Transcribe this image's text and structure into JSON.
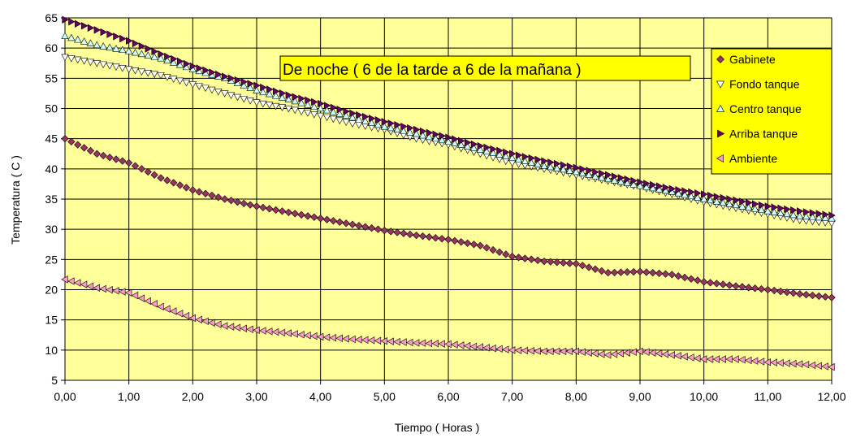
{
  "chart_data": {
    "type": "scatter",
    "annotation": "De noche ( 6 de la tarde a 6 de la mañana )",
    "xlabel": "Tiempo ( Horas )",
    "ylabel": "Temperatura ( C )",
    "xlim": [
      0,
      12
    ],
    "ylim": [
      5,
      65
    ],
    "xticks": [
      "0,00",
      "1,00",
      "2,00",
      "3,00",
      "4,00",
      "5,00",
      "6,00",
      "7,00",
      "8,00",
      "9,00",
      "10,00",
      "11,00",
      "12,00"
    ],
    "yticks": [
      5,
      10,
      15,
      20,
      25,
      30,
      35,
      40,
      45,
      50,
      55,
      60,
      65
    ],
    "grid": true,
    "legend_position": "right",
    "colors": {
      "plot_background": "#ffff99",
      "legend_background": "#ffff00",
      "annotation_background": "#ffff00",
      "gridline": "#000000"
    },
    "series": [
      {
        "name": "Gabinete",
        "marker": "diamond",
        "color": "#993366",
        "x": [
          0,
          0.5,
          1,
          1.5,
          2,
          2.5,
          3,
          3.5,
          4,
          4.5,
          5,
          5.5,
          6,
          6.5,
          7,
          7.5,
          8,
          8.5,
          9,
          9.5,
          10,
          10.5,
          11,
          11.5,
          12
        ],
        "y": [
          45,
          42.5,
          41,
          38.5,
          36.5,
          35,
          33.8,
          32.8,
          31.8,
          30.8,
          29.8,
          29,
          28.3,
          27.3,
          25.5,
          24.7,
          24.3,
          22.8,
          23,
          22.5,
          21.3,
          20.6,
          20,
          19.3,
          18.7
        ]
      },
      {
        "name": "Fondo tanque",
        "marker": "triangle-down",
        "color": "#ffffff",
        "x": [
          0,
          0.5,
          1,
          1.5,
          2,
          2.5,
          3,
          3.5,
          4,
          4.5,
          5,
          5.5,
          6,
          6.5,
          7,
          7.5,
          8,
          8.5,
          9,
          9.5,
          10,
          10.5,
          11,
          11.5,
          12
        ],
        "y": [
          58.5,
          57.5,
          56.5,
          55.5,
          54,
          52.5,
          51,
          50,
          48.8,
          47.5,
          46.5,
          45,
          44,
          42.5,
          41,
          40,
          39,
          38,
          37,
          35.8,
          34.5,
          33.5,
          32.5,
          31.5,
          31
        ]
      },
      {
        "name": "Centro tanque",
        "marker": "triangle-up",
        "color": "#ccffff",
        "x": [
          0,
          0.5,
          1,
          1.5,
          2,
          2.5,
          3,
          3.5,
          4,
          4.5,
          5,
          5.5,
          6,
          6.5,
          7,
          7.5,
          8,
          8.5,
          9,
          9.5,
          10,
          10.5,
          11,
          11.5,
          12
        ],
        "y": [
          62,
          60.5,
          59.5,
          58.3,
          56.5,
          55,
          53,
          51.5,
          50,
          48.5,
          47,
          45.8,
          44.5,
          43.2,
          41.8,
          40.5,
          39.5,
          38.3,
          37.2,
          36.2,
          35,
          34,
          33,
          32.2,
          31.8
        ]
      },
      {
        "name": "Arriba tanque",
        "marker": "triangle-right",
        "color": "#660066",
        "x": [
          0,
          0.5,
          1,
          1.5,
          2,
          2.5,
          3,
          3.5,
          4,
          4.5,
          5,
          5.5,
          6,
          6.5,
          7,
          7.5,
          8,
          8.5,
          9,
          9.5,
          10,
          10.5,
          11,
          11.5,
          12
        ],
        "y": [
          64.7,
          63,
          61.2,
          59,
          57,
          55.3,
          53.8,
          52.2,
          50.8,
          49.2,
          47.8,
          46.5,
          45.2,
          43.8,
          42.5,
          41.3,
          40.2,
          39,
          37.8,
          36.7,
          35.8,
          34.8,
          33.8,
          33,
          32.3
        ]
      },
      {
        "name": "Ambiente",
        "marker": "triangle-left",
        "color": "#ff99cc",
        "x": [
          0,
          0.5,
          1,
          1.5,
          2,
          2.5,
          3,
          3.5,
          4,
          4.5,
          5,
          5.5,
          6,
          6.5,
          7,
          7.5,
          8,
          8.5,
          9,
          9.5,
          10,
          10.5,
          11,
          11.5,
          12
        ],
        "y": [
          21.7,
          20.3,
          19.5,
          17.2,
          15.3,
          14,
          13.3,
          12.8,
          12.2,
          11.8,
          11.5,
          11.2,
          11,
          10.5,
          10,
          9.8,
          9.8,
          9.2,
          9.8,
          9.2,
          8.5,
          8.5,
          8,
          7.7,
          7.2
        ]
      }
    ]
  }
}
